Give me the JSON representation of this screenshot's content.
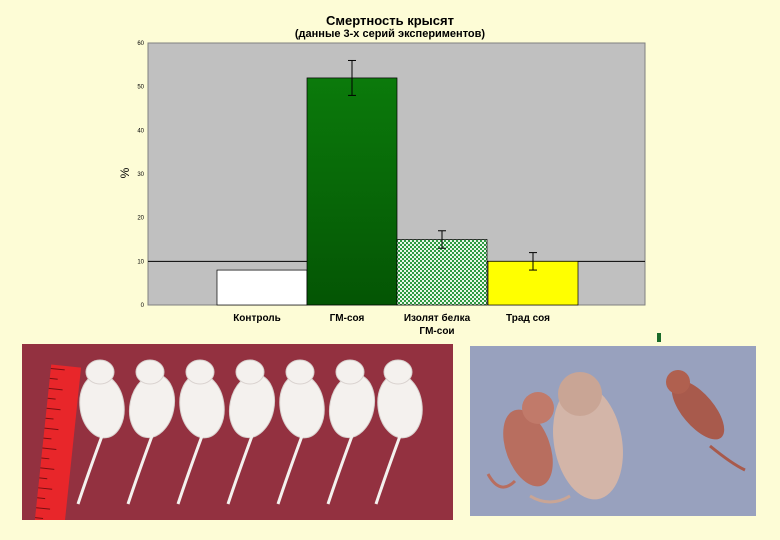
{
  "chart_data": {
    "type": "bar",
    "title": "Смертность крысят",
    "subtitle": "(данные 3-х серий экспериментов)",
    "ylabel": "%",
    "xlabel": "",
    "ylim": [
      0,
      60
    ],
    "yticks": [
      0,
      10,
      20,
      30,
      40,
      50,
      60
    ],
    "categories": [
      "Контроль",
      "ГМ-соя",
      "Изолят белка ГМ-сои",
      "Трад соя"
    ],
    "category_label_lines": [
      [
        "Контроль"
      ],
      [
        "ГМ-соя"
      ],
      [
        "Изолят белка",
        "ГМ-сои"
      ],
      [
        "Трад соя"
      ]
    ],
    "values": [
      8,
      52,
      15,
      10
    ],
    "error_low": [
      null,
      48,
      13,
      8
    ],
    "error_high": [
      null,
      56,
      17,
      12
    ],
    "bar_colors": [
      "#ffffff",
      "#0a6b0a",
      "#33a045",
      "#ffff00"
    ],
    "bar_patterns": [
      "solid",
      "gradient",
      "checker",
      "solid"
    ],
    "plot_background": "#c0c0c0",
    "grid": false,
    "reference_line": 10
  },
  "photos": {
    "left": {
      "subject": "seven white rat pups beside a red ruler",
      "background": "#8a2d3d"
    },
    "right": {
      "subject": "three rat pups of different sizes",
      "background": "#98a1be"
    }
  },
  "colors": {
    "page_background": "#fdfcd6",
    "accent_marker": "#1a6b2a"
  }
}
